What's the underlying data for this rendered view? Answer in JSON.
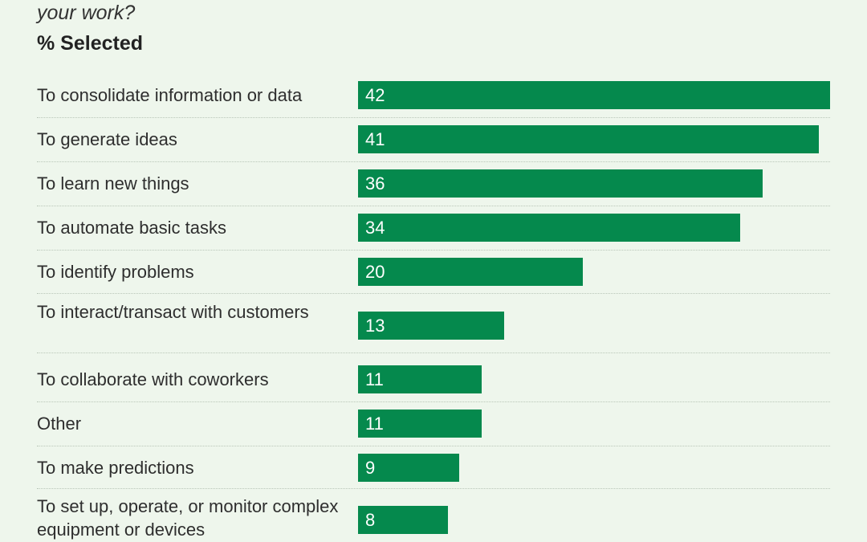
{
  "chart_data": {
    "type": "bar",
    "orientation": "horizontal",
    "subtitle": "your work?",
    "ylabel": "% Selected",
    "categories": [
      "To consolidate information or data",
      "To generate ideas",
      "To learn new things",
      "To automate basic tasks",
      "To identify problems",
      "To interact/transact with customers",
      "To collaborate with coworkers",
      "Other",
      "To make predictions",
      "To set up, operate, or monitor complex equipment or devices"
    ],
    "values": [
      42,
      41,
      36,
      34,
      20,
      13,
      11,
      11,
      9,
      8
    ],
    "xlim": [
      0,
      42
    ],
    "grid": false,
    "legend": "none",
    "colors": {
      "bar": "#05894d",
      "background": "#eef6ec",
      "value_text": "#ffffff"
    }
  }
}
